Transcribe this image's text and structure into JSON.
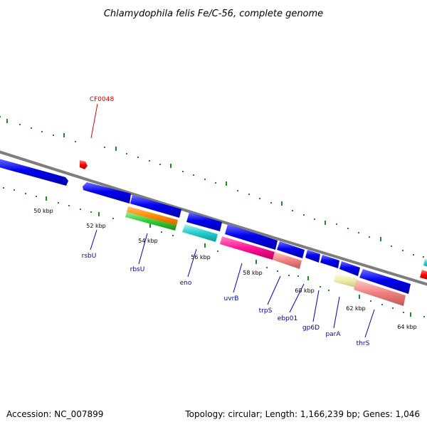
{
  "title": "Chlamydophila felis Fe/C-56, complete genome",
  "footer": {
    "accession": "Accession: NC_007899",
    "summary": "Topology: circular; Length: 1,166,239 bp; Genes: 1,046"
  },
  "colors": {
    "backbone": "#8a8a8a",
    "tick": "#1f8a1f",
    "gene_label": "#0000aa",
    "highlight_label": "#cc0000",
    "blue": "#0000ee",
    "orange": "#ff8c00",
    "green": "#33cc33",
    "cyan": "#22cccc",
    "magenta": "#ff1493",
    "salmon": "#f08080",
    "khaki": "#eeeeaa",
    "red": "#ff0000"
  },
  "scale_labels": [
    "50 kbp",
    "52 kbp",
    "54 kbp",
    "56 kbp",
    "58 kbp",
    "60 kbp",
    "62 kbp",
    "64 kbp"
  ],
  "highlight_feature": "CF0048",
  "gene_labels": [
    "rsbU",
    "rbsU",
    "eno",
    "uvrB",
    "trpS",
    "ebp01",
    "gp6D",
    "parA",
    "thrS"
  ]
}
